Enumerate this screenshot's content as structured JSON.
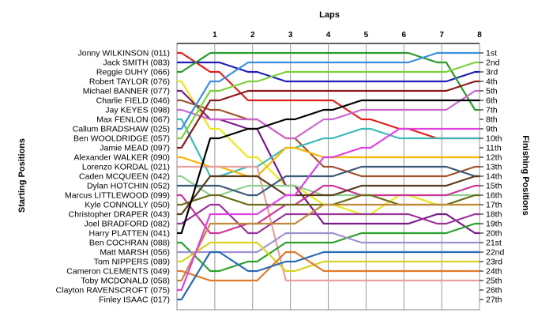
{
  "chart_data": {
    "type": "line",
    "title": "",
    "top_axis_label": "Laps",
    "left_axis_label": "Starting Positions",
    "right_axis_label": "Finishing Positions",
    "laps": [
      0,
      1,
      2,
      3,
      4,
      5,
      6,
      7,
      8
    ],
    "lap_tick_labels": [
      "1",
      "2",
      "3",
      "4",
      "5",
      "6",
      "7",
      "8"
    ],
    "finishing_labels": [
      "1st",
      "2nd",
      "3rd",
      "4th",
      "5th",
      "6th",
      "7th",
      "8th",
      "9th",
      "10th",
      "11th",
      "12th",
      "13th",
      "14th",
      "15th",
      "16th",
      "17th",
      "18th",
      "19th",
      "20th",
      "21st",
      "22nd",
      "23rd",
      "24th",
      "25th",
      "26th",
      "27th"
    ],
    "position_range": [
      1,
      27
    ],
    "grid": "vertical lines at each lap",
    "series": [
      {
        "name": "Jonny WILKINSON (011)",
        "color": "#e0201a",
        "positions": [
          1,
          3,
          6,
          6,
          6,
          8,
          9,
          10,
          10
        ]
      },
      {
        "name": "Jack SMITH (083)",
        "color": "#1f1fb4",
        "positions": [
          2,
          2,
          3,
          4,
          4,
          4,
          4,
          4,
          3
        ]
      },
      {
        "name": "Reggie DUHY (066)",
        "color": "#2a9a2a",
        "positions": [
          3,
          1,
          1,
          1,
          1,
          1,
          1,
          2,
          7
        ]
      },
      {
        "name": "Robert TAYLOR (076)",
        "color": "#e8e81a",
        "positions": [
          4,
          9,
          12,
          15,
          17,
          18,
          16,
          17,
          17
        ]
      },
      {
        "name": "Michael BANNER (077)",
        "color": "#7a1a8a",
        "positions": [
          5,
          8,
          9,
          15,
          19,
          19,
          19,
          18,
          20
        ]
      },
      {
        "name": "Charlie FIELD (046)",
        "color": "#a0522d",
        "positions": [
          6,
          7,
          8,
          10,
          13,
          14,
          14,
          14,
          13
        ]
      },
      {
        "name": "Jay KEYES (098)",
        "color": "#cc66cc",
        "positions": [
          7,
          8,
          8,
          10,
          8,
          7,
          7,
          7,
          5
        ]
      },
      {
        "name": "Max FENLON (067)",
        "color": "#3cb8b8",
        "positions": [
          8,
          14,
          13,
          11,
          10,
          9,
          10,
          10,
          10
        ]
      },
      {
        "name": "Callum BRADSHAW (025)",
        "color": "#3a8fe0",
        "positions": [
          9,
          4,
          2,
          2,
          2,
          2,
          2,
          1,
          1
        ]
      },
      {
        "name": "Ben WOOLDRIDGE (057)",
        "color": "#7ad23a",
        "positions": [
          10,
          5,
          4,
          3,
          3,
          3,
          3,
          3,
          2
        ]
      },
      {
        "name": "Jamie MEAD (097)",
        "color": "#8b1a1a",
        "positions": [
          11,
          6,
          5,
          5,
          5,
          5,
          5,
          5,
          4
        ]
      },
      {
        "name": "Alexander WALKER (090)",
        "color": "#f5b800",
        "positions": [
          12,
          13,
          14,
          11,
          12,
          12,
          12,
          12,
          12
        ]
      },
      {
        "name": "Lorenzo KORDAL (021)",
        "color": "#e8a0a0",
        "positions": [
          13,
          13,
          13,
          25,
          25,
          25,
          25,
          25,
          25
        ]
      },
      {
        "name": "Caden MCQUEEN (042)",
        "color": "#8fcf8f",
        "positions": [
          14,
          16,
          15,
          15,
          16,
          16,
          16,
          16,
          16
        ]
      },
      {
        "name": "Dylan HOTCHIN (052)",
        "color": "#3c5a78",
        "positions": [
          15,
          15,
          16,
          14,
          14,
          13,
          13,
          13,
          14
        ]
      },
      {
        "name": "Marcus LITTLEWOOD (099)",
        "color": "#cc3399",
        "positions": [
          16,
          20,
          19,
          17,
          15,
          16,
          16,
          16,
          15
        ]
      },
      {
        "name": "Kyle CONNOLLY (050)",
        "color": "#6b6b1a",
        "positions": [
          17,
          16,
          17,
          17,
          17,
          16,
          17,
          17,
          16
        ]
      },
      {
        "name": "Christopher DRAPER (043)",
        "color": "#5a3a1a",
        "positions": [
          18,
          14,
          14,
          16,
          16,
          15,
          15,
          15,
          14
        ]
      },
      {
        "name": "Joel BRADFORD (082)",
        "color": "#993399",
        "positions": [
          19,
          17,
          20,
          18,
          18,
          18,
          18,
          19,
          18
        ]
      },
      {
        "name": "Harry PLATTEN (041)",
        "color": "#000000",
        "positions": [
          20,
          10,
          9,
          8,
          7,
          6,
          6,
          6,
          6
        ]
      },
      {
        "name": "Ben COCHRAN (088)",
        "color": "#2aa02a",
        "positions": [
          21,
          24,
          23,
          21,
          21,
          20,
          20,
          20,
          19
        ]
      },
      {
        "name": "Matt MARSH (056)",
        "color": "#a090d0",
        "positions": [
          22,
          22,
          22,
          20,
          20,
          21,
          21,
          21,
          21
        ]
      },
      {
        "name": "Tom NIPPERS (089)",
        "color": "#d4d420",
        "positions": [
          23,
          21,
          21,
          24,
          23,
          23,
          23,
          23,
          23
        ]
      },
      {
        "name": "Cameron CLEMENTS (049)",
        "color": "#e07a2a",
        "positions": [
          24,
          25,
          25,
          22,
          24,
          24,
          24,
          24,
          24
        ]
      },
      {
        "name": "Toby MCDONALD (058)",
        "color": "#c08a3a",
        "positions": [
          25,
          19,
          19,
          19,
          17,
          17,
          17,
          17,
          17
        ]
      },
      {
        "name": "Clayton RAVENSCROFT (075)",
        "color": "#e040e0",
        "positions": [
          26,
          18,
          18,
          16,
          12,
          11,
          9,
          9,
          9
        ]
      },
      {
        "name": "Finley ISAAC (017)",
        "color": "#2a6ab4",
        "positions": [
          27,
          22,
          24,
          23,
          22,
          22,
          22,
          22,
          22
        ]
      }
    ]
  }
}
